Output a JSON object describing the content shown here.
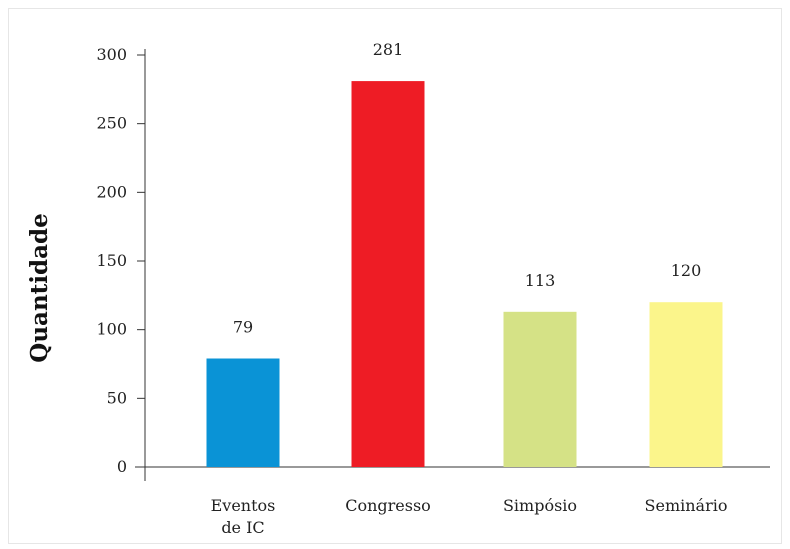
{
  "chart_data": {
    "type": "bar",
    "categories": [
      [
        "Eventos",
        "de IC"
      ],
      [
        "Congresso"
      ],
      [
        "Simpósio"
      ],
      [
        "Seminário"
      ]
    ],
    "values": [
      79,
      281,
      113,
      120
    ],
    "data_labels": [
      "79",
      "281",
      "113",
      "120"
    ],
    "colors": [
      "#0a93d6",
      "#ee1c25",
      "#d5e286",
      "#fbf58b"
    ],
    "title": "",
    "xlabel": "",
    "ylabel": "Quantidade",
    "ylim": [
      0,
      300
    ],
    "yticks": [
      0,
      50,
      100,
      150,
      200,
      250,
      300
    ],
    "grid": false,
    "legend": "none"
  }
}
